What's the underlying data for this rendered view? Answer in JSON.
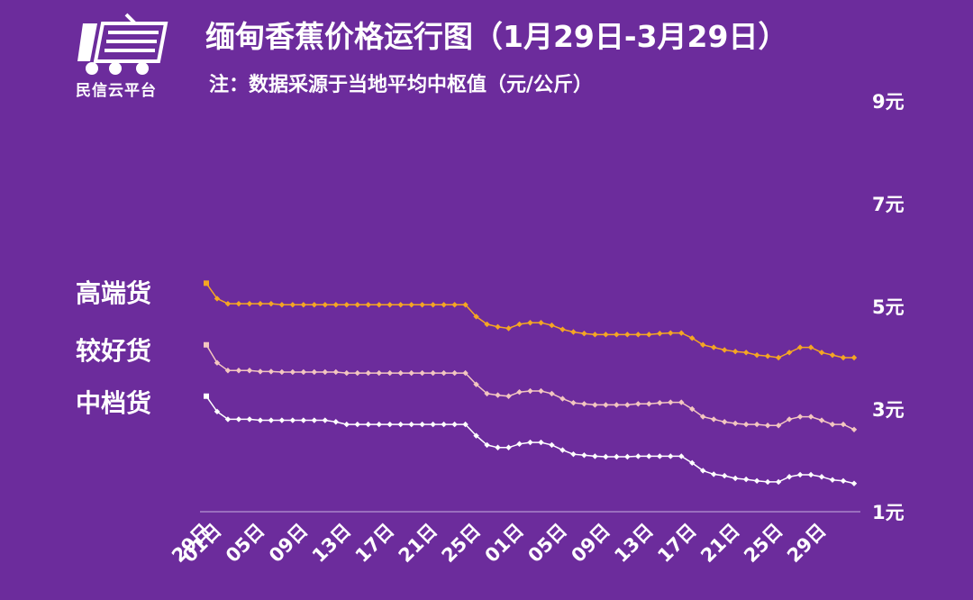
{
  "header": {
    "logo_text": "民信云平台",
    "title": "缅甸香蕉价格运行图（1月29日-3月29日）",
    "subtitle": "注：数据采源于当地平均中枢值（元/公斤）"
  },
  "colors": {
    "background": "#6c2c9c",
    "high": "#f5a623",
    "good": "#f3c6c0",
    "mid": "#ffffff",
    "axis": "#c8b0e0"
  },
  "chart_data": {
    "type": "line",
    "title": "缅甸香蕉价格运行图（1月29日-3月29日）",
    "subtitle": "注：数据采源于当地平均中枢值（元/公斤）",
    "ylim": [
      1,
      9
    ],
    "y_ticks": [
      1,
      3,
      5,
      7,
      9
    ],
    "y_tick_labels": [
      "1元",
      "3元",
      "5元",
      "7元",
      "9元"
    ],
    "x_tick_labels": [
      "29日",
      "01日",
      "05日",
      "09日",
      "13日",
      "17日",
      "21日",
      "25日",
      "01日",
      "05日",
      "09日",
      "13日",
      "17日",
      "21日",
      "25日",
      "29日"
    ],
    "x_tick_index": [
      0,
      1,
      5,
      9,
      13,
      17,
      21,
      25,
      29,
      33,
      37,
      41,
      45,
      49,
      53,
      57
    ],
    "series": [
      {
        "name": "高端货",
        "color_key": "high",
        "values": [
          5.45,
          5.15,
          5.05,
          5.05,
          5.05,
          5.05,
          5.05,
          5.03,
          5.03,
          5.03,
          5.03,
          5.03,
          5.03,
          5.03,
          5.03,
          5.03,
          5.03,
          5.03,
          5.03,
          5.03,
          5.03,
          5.03,
          5.03,
          5.03,
          5.03,
          4.8,
          4.65,
          4.6,
          4.57,
          4.65,
          4.68,
          4.68,
          4.63,
          4.55,
          4.5,
          4.47,
          4.45,
          4.45,
          4.45,
          4.45,
          4.45,
          4.45,
          4.47,
          4.48,
          4.48,
          4.38,
          4.25,
          4.2,
          4.15,
          4.12,
          4.1,
          4.05,
          4.03,
          4.0,
          4.1,
          4.2,
          4.2,
          4.1,
          4.05,
          4.0,
          4.0
        ]
      },
      {
        "name": "较好货",
        "color_key": "good",
        "values": [
          4.25,
          3.9,
          3.75,
          3.75,
          3.75,
          3.73,
          3.73,
          3.72,
          3.72,
          3.72,
          3.72,
          3.72,
          3.72,
          3.7,
          3.7,
          3.7,
          3.7,
          3.7,
          3.7,
          3.7,
          3.7,
          3.7,
          3.7,
          3.7,
          3.7,
          3.48,
          3.3,
          3.27,
          3.25,
          3.33,
          3.35,
          3.35,
          3.3,
          3.2,
          3.12,
          3.1,
          3.08,
          3.08,
          3.08,
          3.08,
          3.1,
          3.1,
          3.12,
          3.13,
          3.13,
          3.0,
          2.85,
          2.8,
          2.75,
          2.72,
          2.7,
          2.7,
          2.68,
          2.68,
          2.8,
          2.85,
          2.85,
          2.78,
          2.7,
          2.7,
          2.6
        ]
      },
      {
        "name": "中档货",
        "color_key": "mid",
        "values": [
          3.25,
          2.95,
          2.8,
          2.8,
          2.8,
          2.78,
          2.78,
          2.78,
          2.78,
          2.78,
          2.78,
          2.78,
          2.75,
          2.7,
          2.7,
          2.7,
          2.7,
          2.7,
          2.7,
          2.7,
          2.7,
          2.7,
          2.7,
          2.7,
          2.7,
          2.48,
          2.3,
          2.25,
          2.25,
          2.32,
          2.35,
          2.35,
          2.3,
          2.2,
          2.12,
          2.1,
          2.08,
          2.07,
          2.07,
          2.07,
          2.08,
          2.08,
          2.08,
          2.08,
          2.08,
          1.95,
          1.8,
          1.73,
          1.7,
          1.65,
          1.63,
          1.6,
          1.58,
          1.58,
          1.68,
          1.72,
          1.72,
          1.68,
          1.62,
          1.6,
          1.55
        ]
      }
    ]
  }
}
